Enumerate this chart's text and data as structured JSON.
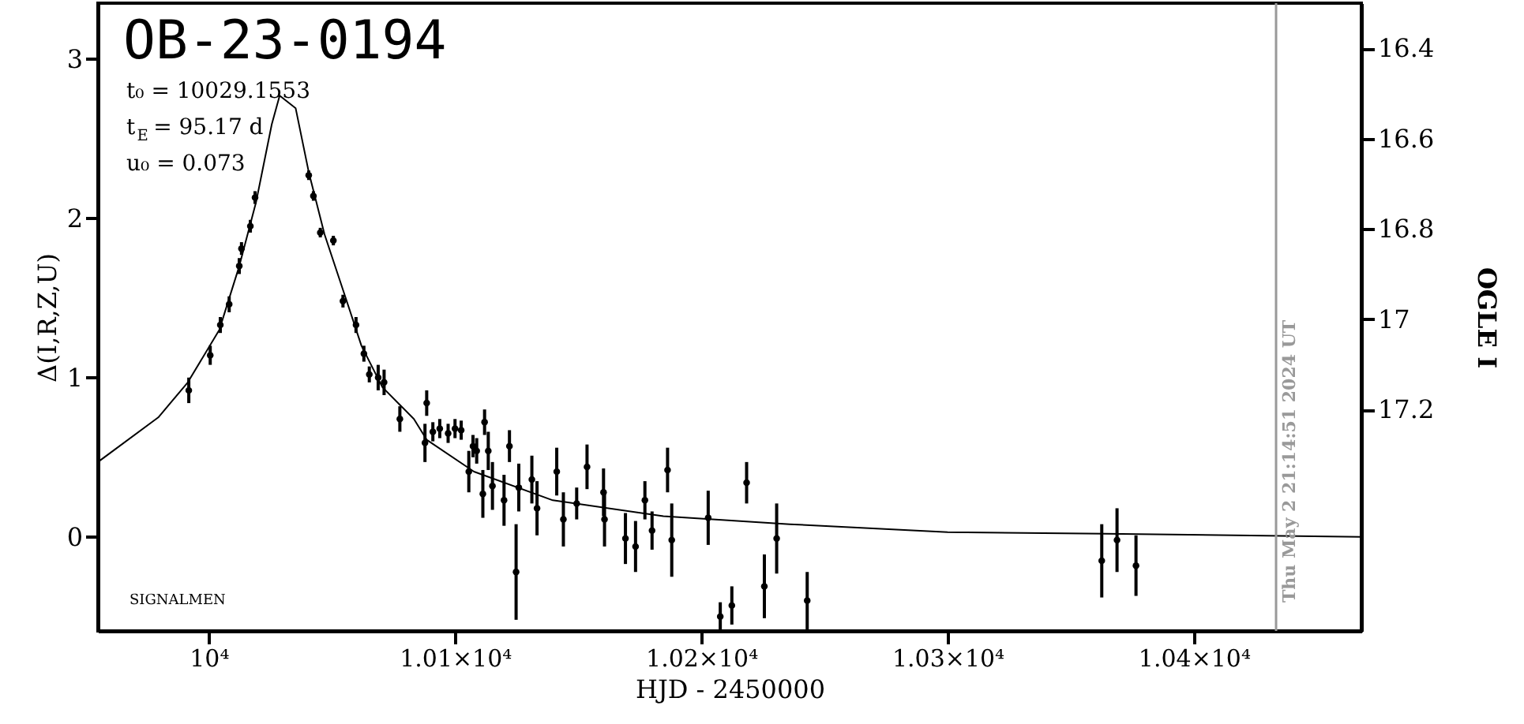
{
  "chart_data": {
    "type": "scatter",
    "title": "OB-23-0194",
    "xlabel": "HJD - 2450000",
    "ylabel": "Δ(I,R,Z,U)",
    "y2label": "OGLE I",
    "annotations": [
      "t₀ = 10029.1553",
      "t$_{E}$ = 95.17 d",
      "u₀ = 0.073",
      "SIGNALMEN",
      "Thu May  2 21:14:51 2024 UT"
    ],
    "xlim": [
      9955,
      10468
    ],
    "ylim": [
      -0.59,
      3.35
    ],
    "xticks": [
      {
        "value": 10000,
        "label": "10⁴"
      },
      {
        "value": 10100,
        "label": "1.01×10⁴"
      },
      {
        "value": 10200,
        "label": "1.02×10⁴"
      },
      {
        "value": 10300,
        "label": "1.03×10⁴"
      },
      {
        "value": 10400,
        "label": "1.04×10⁴"
      }
    ],
    "yticks": [
      0,
      1,
      2,
      3
    ],
    "y2lim": [
      17.69,
      16.3
    ],
    "y2ticks": [
      16.4,
      16.6,
      16.8,
      17,
      17.2
    ],
    "grid": false,
    "marker": "circle",
    "ref_lines": [
      {
        "axis": "x",
        "value": 10433.38,
        "color": "#999999"
      }
    ],
    "series": [
      {
        "color": "#000000",
        "x": [
          9991.9,
          10000.6,
          10004.7,
          10008.3,
          10012.4,
          10013.3,
          10016.9,
          10018.8,
          10040.6,
          10042.5,
          10045.3,
          10050.6,
          10054.5,
          10059.8,
          10063,
          10065.2,
          10068.8,
          10071.2,
          10077.6,
          10087.8,
          10088.5,
          10091,
          10093.8,
          10097.2,
          10100,
          10102.5,
          10105.6,
          10107.3,
          10108.8,
          10111.3,
          10112,
          10113.5,
          10115.2,
          10119.9,
          10122.1,
          10124.8,
          10125.9,
          10131.2,
          10133.3,
          10141.3,
          10144,
          10149.4,
          10153.6,
          10160.3,
          10160.7,
          10169.2,
          10173.3,
          10177.1,
          10180,
          10186.3,
          10188,
          10202.8,
          10207.7,
          10212.4,
          10218.4,
          10225.6,
          10230.6,
          10243,
          10362.6,
          10368.8,
          10376.5
        ],
        "values": [
          0.92,
          1.14,
          1.33,
          1.46,
          1.7,
          1.81,
          1.95,
          2.13,
          2.27,
          2.14,
          1.91,
          1.86,
          1.48,
          1.33,
          1.15,
          1.02,
          1.0,
          0.97,
          0.74,
          0.59,
          0.84,
          0.66,
          0.68,
          0.65,
          0.68,
          0.67,
          0.41,
          0.57,
          0.54,
          0.27,
          0.72,
          0.54,
          0.32,
          0.23,
          0.57,
          -0.22,
          0.31,
          0.36,
          0.18,
          0.41,
          0.11,
          0.21,
          0.44,
          0.28,
          0.11,
          -0.01,
          -0.06,
          0.23,
          0.04,
          0.42,
          -0.02,
          0.12,
          -0.5,
          -0.43,
          0.34,
          -0.31,
          -0.01,
          -0.4,
          -0.15,
          -0.02,
          -0.18
        ],
        "errors": [
          0.08,
          0.06,
          0.05,
          0.05,
          0.05,
          0.04,
          0.04,
          0.04,
          0.03,
          0.03,
          0.03,
          0.03,
          0.04,
          0.05,
          0.05,
          0.05,
          0.08,
          0.08,
          0.08,
          0.12,
          0.08,
          0.06,
          0.06,
          0.06,
          0.06,
          0.06,
          0.13,
          0.07,
          0.08,
          0.15,
          0.08,
          0.12,
          0.15,
          0.16,
          0.1,
          0.3,
          0.15,
          0.15,
          0.17,
          0.15,
          0.17,
          0.1,
          0.14,
          0.15,
          0.17,
          0.16,
          0.16,
          0.12,
          0.12,
          0.14,
          0.23,
          0.17,
          0.09,
          0.12,
          0.13,
          0.2,
          0.22,
          0.18,
          0.23,
          0.2,
          0.19
        ]
      },
      {
        "type": "line",
        "color": "#000000",
        "marker": "none",
        "line_style": "solid",
        "x": [
          9955,
          9979.5,
          9991.5,
          10004.3,
          10012.4,
          10019.2,
          10025.6,
          10028.8,
          10035.3,
          10040.6,
          10047,
          10055.6,
          10062,
          10070.5,
          10083.3,
          10088.5,
          10107.7,
          10139.7,
          10184.6,
          10235.9,
          10300,
          10364,
          10468
        ],
        "values": [
          0.47,
          0.75,
          0.97,
          1.3,
          1.7,
          2.1,
          2.59,
          2.77,
          2.69,
          2.29,
          1.9,
          1.5,
          1.2,
          0.94,
          0.74,
          0.61,
          0.41,
          0.23,
          0.13,
          0.08,
          0.03,
          0.02,
          0.0
        ]
      }
    ]
  }
}
